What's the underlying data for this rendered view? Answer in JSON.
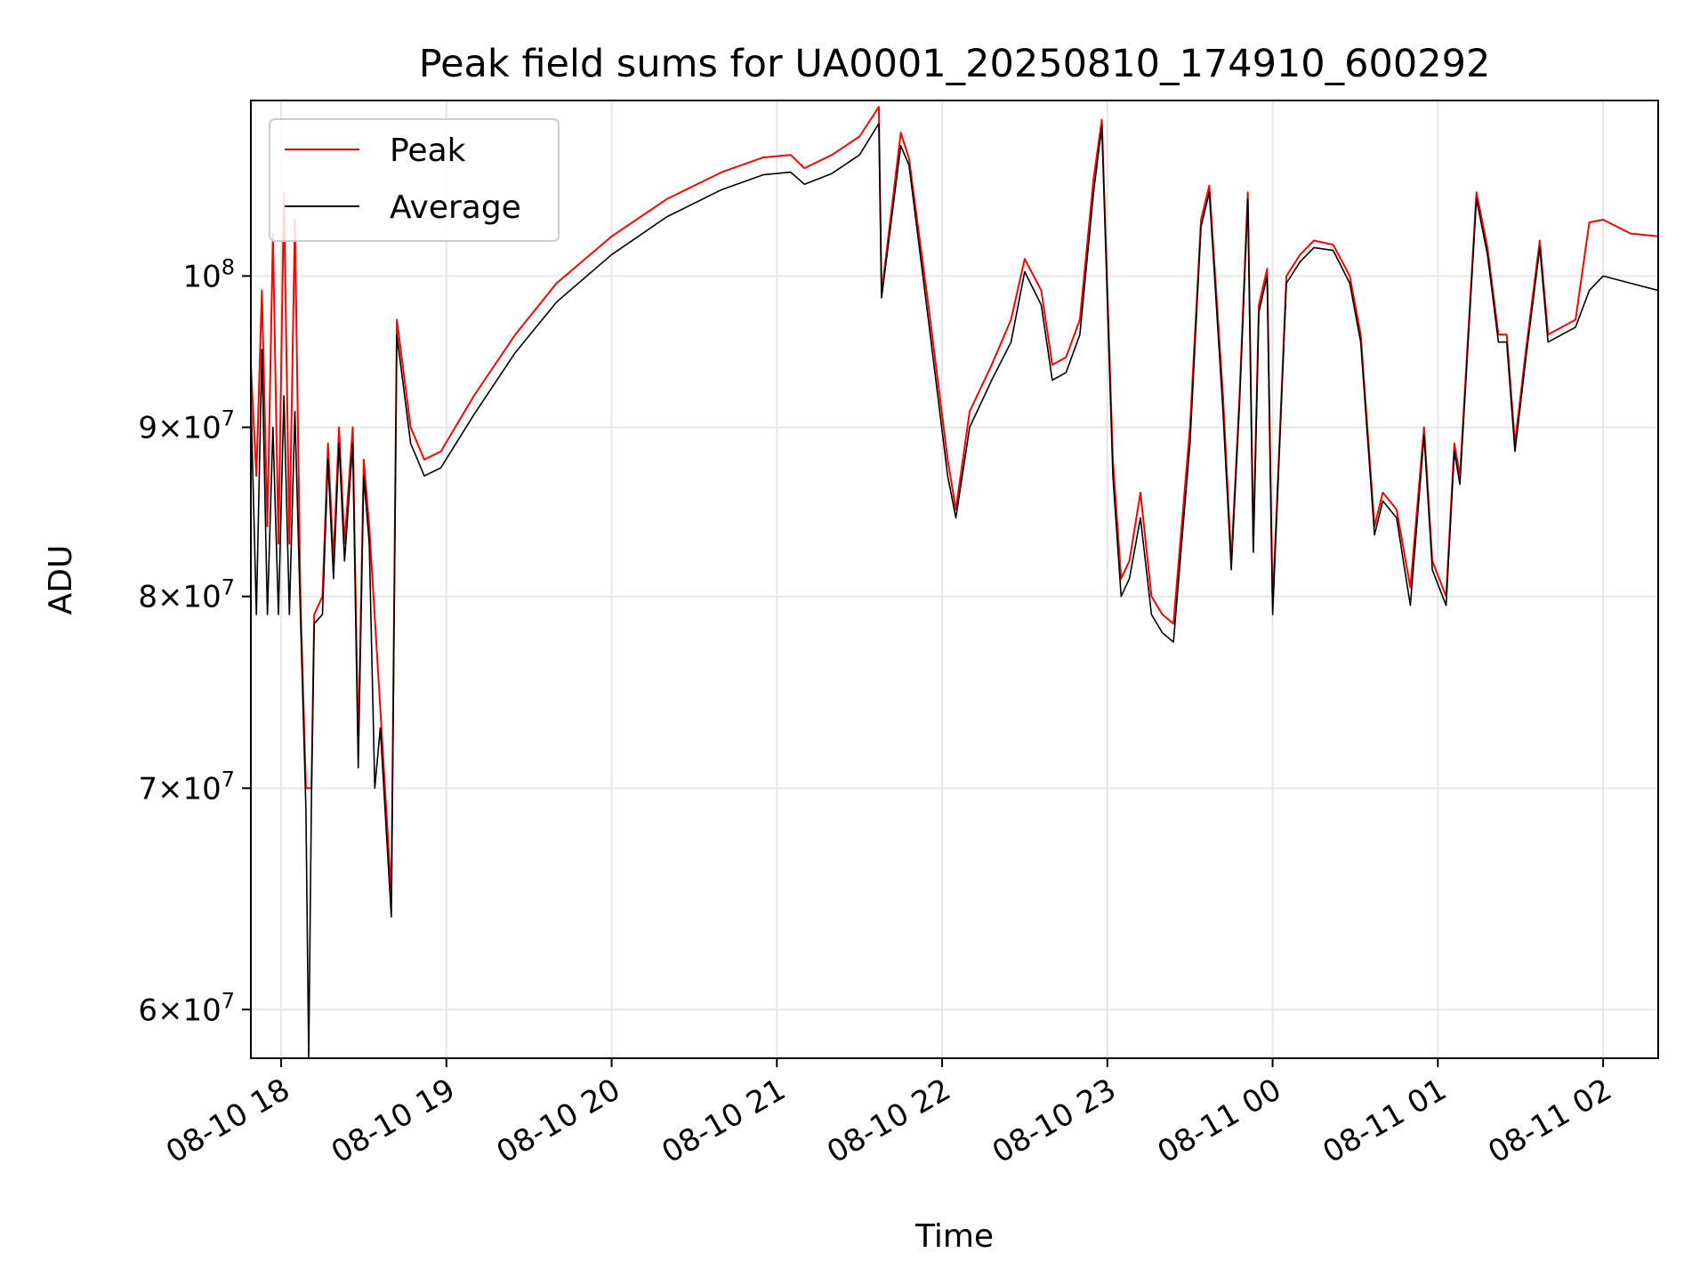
{
  "chart_data": {
    "type": "line",
    "title": "Peak field sums for UA0001_20250810_174910_600292",
    "xlabel": "Time",
    "ylabel": "ADU",
    "y_scale": "log",
    "xlim": [
      "2025-08-10T17:49",
      "2025-08-11T02:20"
    ],
    "ylim": [
      58000000,
      113000000
    ],
    "grid": true,
    "legend": {
      "placement": "top-left"
    },
    "x_ticks": [
      {
        "value": "2025-08-10T18:00",
        "label": "08-10 18"
      },
      {
        "value": "2025-08-10T19:00",
        "label": "08-10 19"
      },
      {
        "value": "2025-08-10T20:00",
        "label": "08-10 20"
      },
      {
        "value": "2025-08-10T21:00",
        "label": "08-10 21"
      },
      {
        "value": "2025-08-10T22:00",
        "label": "08-10 22"
      },
      {
        "value": "2025-08-10T23:00",
        "label": "08-10 23"
      },
      {
        "value": "2025-08-11T00:00",
        "label": "08-11 00"
      },
      {
        "value": "2025-08-11T01:00",
        "label": "08-11 01"
      },
      {
        "value": "2025-08-11T02:00",
        "label": "08-11 02"
      }
    ],
    "y_ticks": [
      {
        "value": 60000000,
        "mantissa": "6",
        "base": "10",
        "exp": "7"
      },
      {
        "value": 70000000,
        "mantissa": "7",
        "base": "10",
        "exp": "7"
      },
      {
        "value": 80000000,
        "mantissa": "8",
        "base": "10",
        "exp": "7"
      },
      {
        "value": 90000000,
        "mantissa": "9",
        "base": "10",
        "exp": "7"
      },
      {
        "value": 100000000,
        "mantissa": "",
        "base": "10",
        "exp": "8"
      }
    ],
    "series": [
      {
        "name": "Peak",
        "color": "#ff0000",
        "points": [
          [
            "2025-08-10T17:49",
            94000000
          ],
          [
            "2025-08-10T17:51",
            87000000
          ],
          [
            "2025-08-10T17:53",
            99000000
          ],
          [
            "2025-08-10T17:55",
            84000000
          ],
          [
            "2025-08-10T17:57",
            103000000
          ],
          [
            "2025-08-10T17:59",
            83000000
          ],
          [
            "2025-08-10T18:01",
            106000000
          ],
          [
            "2025-08-10T18:03",
            83000000
          ],
          [
            "2025-08-10T18:05",
            104000000
          ],
          [
            "2025-08-10T18:07",
            80000000
          ],
          [
            "2025-08-10T18:09",
            70000000
          ],
          [
            "2025-08-10T18:11",
            70000000
          ],
          [
            "2025-08-10T18:12",
            79000000
          ],
          [
            "2025-08-10T18:15",
            80000000
          ],
          [
            "2025-08-10T18:17",
            89000000
          ],
          [
            "2025-08-10T18:19",
            82000000
          ],
          [
            "2025-08-10T18:21",
            90000000
          ],
          [
            "2025-08-10T18:23",
            83000000
          ],
          [
            "2025-08-10T18:26",
            90000000
          ],
          [
            "2025-08-10T18:28",
            72000000
          ],
          [
            "2025-08-10T18:30",
            88000000
          ],
          [
            "2025-08-10T18:32",
            84000000
          ],
          [
            "2025-08-10T18:36",
            74000000
          ],
          [
            "2025-08-10T18:40",
            65000000
          ],
          [
            "2025-08-10T18:42",
            97000000
          ],
          [
            "2025-08-10T18:47",
            90000000
          ],
          [
            "2025-08-10T18:52",
            88000000
          ],
          [
            "2025-08-10T18:58",
            88500000
          ],
          [
            "2025-08-10T19:10",
            92000000
          ],
          [
            "2025-08-10T19:25",
            96000000
          ],
          [
            "2025-08-10T19:40",
            99500000
          ],
          [
            "2025-08-10T20:00",
            102800000
          ],
          [
            "2025-08-10T20:20",
            105500000
          ],
          [
            "2025-08-10T20:40",
            107500000
          ],
          [
            "2025-08-10T20:55",
            108600000
          ],
          [
            "2025-08-10T21:05",
            108800000
          ],
          [
            "2025-08-10T21:10",
            107800000
          ],
          [
            "2025-08-10T21:20",
            108800000
          ],
          [
            "2025-08-10T21:30",
            110200000
          ],
          [
            "2025-08-10T21:37",
            112500000
          ],
          [
            "2025-08-10T21:38",
            98800000
          ],
          [
            "2025-08-10T21:45",
            110500000
          ],
          [
            "2025-08-10T21:48",
            108500000
          ],
          [
            "2025-08-10T21:55",
            98000000
          ],
          [
            "2025-08-10T22:02",
            88000000
          ],
          [
            "2025-08-10T22:05",
            85000000
          ],
          [
            "2025-08-10T22:10",
            91000000
          ],
          [
            "2025-08-10T22:18",
            94000000
          ],
          [
            "2025-08-10T22:25",
            97000000
          ],
          [
            "2025-08-10T22:30",
            101200000
          ],
          [
            "2025-08-10T22:36",
            99000000
          ],
          [
            "2025-08-10T22:40",
            94000000
          ],
          [
            "2025-08-10T22:45",
            94500000
          ],
          [
            "2025-08-10T22:50",
            97000000
          ],
          [
            "2025-08-10T22:55",
            107000000
          ],
          [
            "2025-08-10T22:58",
            111500000
          ],
          [
            "2025-08-10T23:02",
            88000000
          ],
          [
            "2025-08-10T23:05",
            81000000
          ],
          [
            "2025-08-10T23:08",
            82000000
          ],
          [
            "2025-08-10T23:12",
            86000000
          ],
          [
            "2025-08-10T23:16",
            80000000
          ],
          [
            "2025-08-10T23:20",
            79000000
          ],
          [
            "2025-08-10T23:24",
            78500000
          ],
          [
            "2025-08-10T23:30",
            90000000
          ],
          [
            "2025-08-10T23:34",
            104000000
          ],
          [
            "2025-08-10T23:37",
            106500000
          ],
          [
            "2025-08-10T23:42",
            92000000
          ],
          [
            "2025-08-10T23:45",
            82000000
          ],
          [
            "2025-08-10T23:48",
            92000000
          ],
          [
            "2025-08-10T23:51",
            106000000
          ],
          [
            "2025-08-10T23:53",
            83000000
          ],
          [
            "2025-08-10T23:55",
            98000000
          ],
          [
            "2025-08-10T23:58",
            100500000
          ],
          [
            "2025-08-11T00:00",
            79500000
          ],
          [
            "2025-08-11T00:05",
            100000000
          ],
          [
            "2025-08-11T00:10",
            101500000
          ],
          [
            "2025-08-11T00:15",
            102500000
          ],
          [
            "2025-08-11T00:22",
            102200000
          ],
          [
            "2025-08-11T00:28",
            100000000
          ],
          [
            "2025-08-11T00:32",
            96000000
          ],
          [
            "2025-08-11T00:37",
            84000000
          ],
          [
            "2025-08-11T00:40",
            86000000
          ],
          [
            "2025-08-11T00:45",
            85000000
          ],
          [
            "2025-08-11T00:50",
            80500000
          ],
          [
            "2025-08-11T00:55",
            90000000
          ],
          [
            "2025-08-11T00:58",
            82000000
          ],
          [
            "2025-08-11T01:03",
            80000000
          ],
          [
            "2025-08-11T01:06",
            89000000
          ],
          [
            "2025-08-11T01:08",
            87000000
          ],
          [
            "2025-08-11T01:14",
            106000000
          ],
          [
            "2025-08-11T01:18",
            102000000
          ],
          [
            "2025-08-11T01:22",
            96000000
          ],
          [
            "2025-08-11T01:25",
            96000000
          ],
          [
            "2025-08-11T01:28",
            89000000
          ],
          [
            "2025-08-11T01:32",
            95000000
          ],
          [
            "2025-08-11T01:37",
            102500000
          ],
          [
            "2025-08-11T01:40",
            96000000
          ],
          [
            "2025-08-11T01:45",
            96500000
          ],
          [
            "2025-08-11T01:50",
            97000000
          ],
          [
            "2025-08-11T01:55",
            103800000
          ],
          [
            "2025-08-11T02:00",
            104000000
          ],
          [
            "2025-08-11T02:10",
            103000000
          ],
          [
            "2025-08-11T02:20",
            102800000
          ]
        ]
      },
      {
        "name": "Average",
        "color": "#000000",
        "points": [
          [
            "2025-08-10T17:49",
            92000000
          ],
          [
            "2025-08-10T17:51",
            79000000
          ],
          [
            "2025-08-10T17:53",
            95000000
          ],
          [
            "2025-08-10T17:55",
            79000000
          ],
          [
            "2025-08-10T17:57",
            90000000
          ],
          [
            "2025-08-10T17:59",
            79000000
          ],
          [
            "2025-08-10T18:01",
            92000000
          ],
          [
            "2025-08-10T18:03",
            79000000
          ],
          [
            "2025-08-10T18:05",
            91000000
          ],
          [
            "2025-08-10T18:07",
            79000000
          ],
          [
            "2025-08-10T18:09",
            69000000
          ],
          [
            "2025-08-10T18:10",
            58000000
          ],
          [
            "2025-08-10T18:11",
            69500000
          ],
          [
            "2025-08-10T18:12",
            78500000
          ],
          [
            "2025-08-10T18:15",
            79000000
          ],
          [
            "2025-08-10T18:17",
            88000000
          ],
          [
            "2025-08-10T18:19",
            81000000
          ],
          [
            "2025-08-10T18:21",
            89000000
          ],
          [
            "2025-08-10T18:23",
            82000000
          ],
          [
            "2025-08-10T18:26",
            89000000
          ],
          [
            "2025-08-10T18:28",
            71000000
          ],
          [
            "2025-08-10T18:30",
            87000000
          ],
          [
            "2025-08-10T18:32",
            83000000
          ],
          [
            "2025-08-10T18:34",
            70000000
          ],
          [
            "2025-08-10T18:36",
            73000000
          ],
          [
            "2025-08-10T18:40",
            64000000
          ],
          [
            "2025-08-10T18:42",
            96000000
          ],
          [
            "2025-08-10T18:47",
            89000000
          ],
          [
            "2025-08-10T18:52",
            87000000
          ],
          [
            "2025-08-10T18:58",
            87500000
          ],
          [
            "2025-08-10T19:10",
            90800000
          ],
          [
            "2025-08-10T19:25",
            94800000
          ],
          [
            "2025-08-10T19:40",
            98200000
          ],
          [
            "2025-08-10T20:00",
            101500000
          ],
          [
            "2025-08-10T20:20",
            104200000
          ],
          [
            "2025-08-10T20:40",
            106200000
          ],
          [
            "2025-08-10T20:55",
            107300000
          ],
          [
            "2025-08-10T21:05",
            107500000
          ],
          [
            "2025-08-10T21:10",
            106600000
          ],
          [
            "2025-08-10T21:20",
            107400000
          ],
          [
            "2025-08-10T21:30",
            108800000
          ],
          [
            "2025-08-10T21:37",
            111200000
          ],
          [
            "2025-08-10T21:38",
            98500000
          ],
          [
            "2025-08-10T21:45",
            109500000
          ],
          [
            "2025-08-10T21:48",
            108000000
          ],
          [
            "2025-08-10T21:55",
            97000000
          ],
          [
            "2025-08-10T22:02",
            87000000
          ],
          [
            "2025-08-10T22:05",
            84500000
          ],
          [
            "2025-08-10T22:10",
            90000000
          ],
          [
            "2025-08-10T22:18",
            93000000
          ],
          [
            "2025-08-10T22:25",
            95500000
          ],
          [
            "2025-08-10T22:30",
            100300000
          ],
          [
            "2025-08-10T22:36",
            98000000
          ],
          [
            "2025-08-10T22:40",
            93000000
          ],
          [
            "2025-08-10T22:45",
            93500000
          ],
          [
            "2025-08-10T22:50",
            96000000
          ],
          [
            "2025-08-10T22:55",
            106000000
          ],
          [
            "2025-08-10T22:58",
            111000000
          ],
          [
            "2025-08-10T23:02",
            87000000
          ],
          [
            "2025-08-10T23:05",
            80000000
          ],
          [
            "2025-08-10T23:08",
            81000000
          ],
          [
            "2025-08-10T23:12",
            84500000
          ],
          [
            "2025-08-10T23:16",
            79000000
          ],
          [
            "2025-08-10T23:20",
            78000000
          ],
          [
            "2025-08-10T23:24",
            77500000
          ],
          [
            "2025-08-10T23:30",
            89000000
          ],
          [
            "2025-08-10T23:34",
            103500000
          ],
          [
            "2025-08-10T23:37",
            106000000
          ],
          [
            "2025-08-10T23:42",
            91000000
          ],
          [
            "2025-08-10T23:45",
            81500000
          ],
          [
            "2025-08-10T23:48",
            91500000
          ],
          [
            "2025-08-10T23:51",
            105500000
          ],
          [
            "2025-08-10T23:53",
            82500000
          ],
          [
            "2025-08-10T23:55",
            97500000
          ],
          [
            "2025-08-10T23:58",
            100000000
          ],
          [
            "2025-08-11T00:00",
            79000000
          ],
          [
            "2025-08-11T00:05",
            99500000
          ],
          [
            "2025-08-11T00:10",
            101000000
          ],
          [
            "2025-08-11T00:15",
            102000000
          ],
          [
            "2025-08-11T00:22",
            101800000
          ],
          [
            "2025-08-11T00:28",
            99500000
          ],
          [
            "2025-08-11T00:32",
            95500000
          ],
          [
            "2025-08-11T00:37",
            83500000
          ],
          [
            "2025-08-11T00:40",
            85500000
          ],
          [
            "2025-08-11T00:45",
            84500000
          ],
          [
            "2025-08-11T00:50",
            79500000
          ],
          [
            "2025-08-11T00:55",
            89500000
          ],
          [
            "2025-08-11T00:58",
            81500000
          ],
          [
            "2025-08-11T01:03",
            79500000
          ],
          [
            "2025-08-11T01:06",
            88500000
          ],
          [
            "2025-08-11T01:08",
            86500000
          ],
          [
            "2025-08-11T01:14",
            105500000
          ],
          [
            "2025-08-11T01:18",
            101500000
          ],
          [
            "2025-08-11T01:22",
            95500000
          ],
          [
            "2025-08-11T01:25",
            95500000
          ],
          [
            "2025-08-11T01:28",
            88500000
          ],
          [
            "2025-08-11T01:32",
            94500000
          ],
          [
            "2025-08-11T01:37",
            102000000
          ],
          [
            "2025-08-11T01:40",
            95500000
          ],
          [
            "2025-08-11T01:45",
            96000000
          ],
          [
            "2025-08-11T01:50",
            96500000
          ],
          [
            "2025-08-11T01:55",
            99000000
          ],
          [
            "2025-08-11T02:00",
            100000000
          ],
          [
            "2025-08-11T02:10",
            99500000
          ],
          [
            "2025-08-11T02:20",
            99000000
          ]
        ]
      }
    ]
  }
}
